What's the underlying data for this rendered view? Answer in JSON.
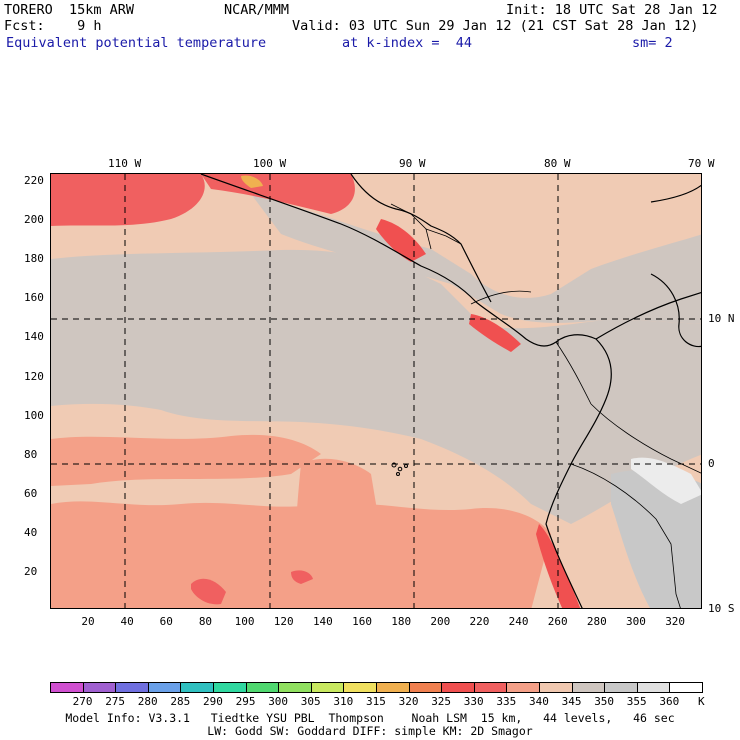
{
  "header": {
    "model": "TORERO  15km ARW",
    "center": "NCAR/MMM",
    "init": "Init: 18 UTC Sat 28 Jan 12",
    "fcst": "Fcst:    9 h",
    "valid": "Valid: 03 UTC Sun 29 Jan 12 (21 CST Sat 28 Jan 12)",
    "field": "Equivalent potential temperature",
    "level": "at k-index =  44",
    "smooth": "sm= 2"
  },
  "map": {
    "top_lon_labels": [
      "110 W",
      "100 W",
      "90 W",
      "80 W",
      "70 W"
    ],
    "right_lat_labels": [
      "10 N",
      "0",
      "10 S"
    ],
    "left_y_ticks": [
      "220",
      "200",
      "180",
      "160",
      "140",
      "120",
      "100",
      "80",
      "60",
      "40",
      "20"
    ],
    "bottom_x_ticks": [
      "20",
      "40",
      "60",
      "80",
      "100",
      "120",
      "140",
      "160",
      "180",
      "200",
      "220",
      "240",
      "260",
      "280",
      "300",
      "320"
    ]
  },
  "colorbar": {
    "labels": [
      "270",
      "275",
      "280",
      "285",
      "290",
      "295",
      "300",
      "305",
      "310",
      "315",
      "320",
      "325",
      "330",
      "335",
      "340",
      "345",
      "350",
      "355",
      "360"
    ],
    "unit": "K",
    "colors": [
      "#d050d0",
      "#a060d0",
      "#7070e0",
      "#6aa0e8",
      "#30c0c0",
      "#30d8a0",
      "#50d870",
      "#90e060",
      "#c8e860",
      "#f0e060",
      "#f0b050",
      "#f08050",
      "#f05050",
      "#f06060",
      "#f4a088",
      "#f0c8b0",
      "#cfc6c0",
      "#c8c8c8",
      "#e0e0e0",
      "#ffffff"
    ]
  },
  "footer": {
    "line1": "Model Info: V3.3.1   Tiedtke YSU PBL  Thompson    Noah LSM  15 km,   44 levels,   46 sec",
    "line2": "LW: Godd SW: Goddard DIFF: simple KM: 2D Smagor"
  }
}
